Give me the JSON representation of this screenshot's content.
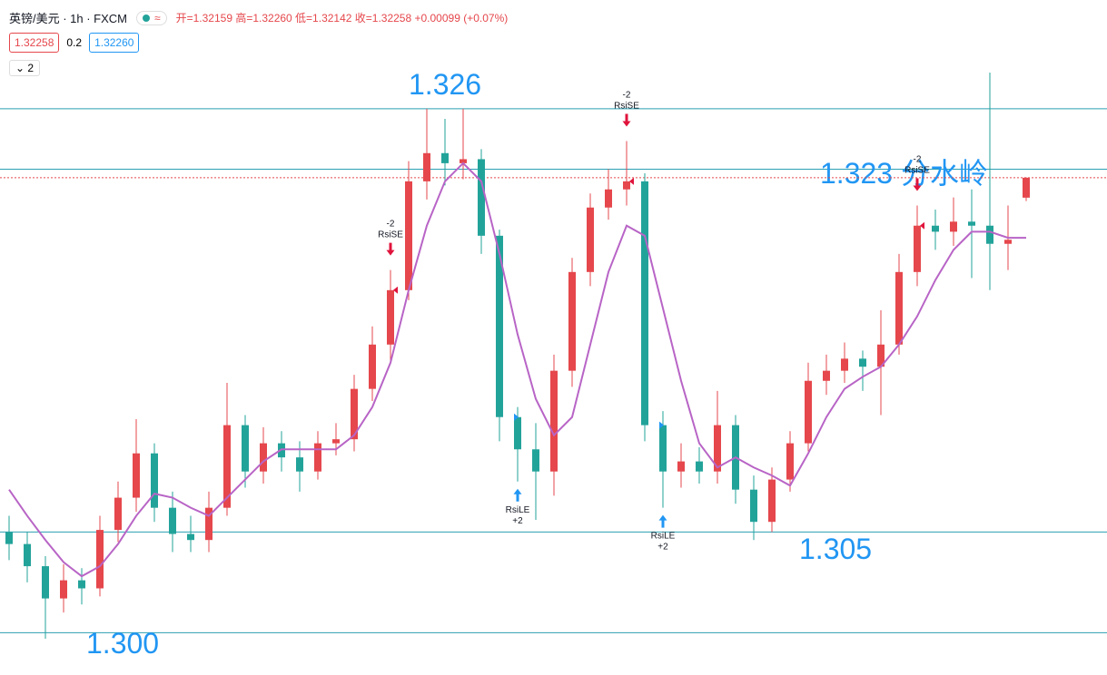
{
  "header": {
    "symbol": "英镑/美元 · 1h · FXCM",
    "ohlc": "开=1.32159 高=1.32260 低=1.32142 收=1.32258 +0.00099 (+0.07%)",
    "bid": "1.32258",
    "spread": "0.2",
    "ask": "1.32260",
    "indicators": "2"
  },
  "chart_data": {
    "type": "candlestick",
    "up_color": "#e5474c",
    "down_color": "#22a39a",
    "ma_color": "#b864c6",
    "level_color": "#2a9fb3",
    "level_label_color": "#2196f3",
    "last_color": "#e5474c",
    "ylim": [
      1.2979,
      1.3314
    ],
    "last": 1.32258,
    "candles": [
      [
        1.305,
        1.3058,
        1.3036,
        1.3044
      ],
      [
        1.3044,
        1.305,
        1.3025,
        1.3033
      ],
      [
        1.3033,
        1.3038,
        1.2997,
        1.3017
      ],
      [
        1.3017,
        1.3034,
        1.301,
        1.3026
      ],
      [
        1.3026,
        1.3032,
        1.3014,
        1.3022
      ],
      [
        1.3022,
        1.3058,
        1.3018,
        1.3051
      ],
      [
        1.3051,
        1.3075,
        1.3045,
        1.3067
      ],
      [
        1.3067,
        1.3106,
        1.306,
        1.3089
      ],
      [
        1.3089,
        1.3094,
        1.3055,
        1.3062
      ],
      [
        1.3062,
        1.307,
        1.304,
        1.3049
      ],
      [
        1.3049,
        1.3058,
        1.304,
        1.3046
      ],
      [
        1.3046,
        1.307,
        1.304,
        1.3062
      ],
      [
        1.3062,
        1.3124,
        1.3058,
        1.3103
      ],
      [
        1.3103,
        1.3108,
        1.3072,
        1.308
      ],
      [
        1.308,
        1.3102,
        1.3074,
        1.3094
      ],
      [
        1.3094,
        1.31,
        1.308,
        1.3087
      ],
      [
        1.3087,
        1.3095,
        1.307,
        1.308
      ],
      [
        1.308,
        1.31,
        1.3076,
        1.3094
      ],
      [
        1.3094,
        1.3104,
        1.3088,
        1.3096
      ],
      [
        1.3096,
        1.3128,
        1.309,
        1.3121
      ],
      [
        1.3121,
        1.3152,
        1.3115,
        1.3143
      ],
      [
        1.3143,
        1.318,
        1.3135,
        1.317
      ],
      [
        1.317,
        1.3234,
        1.3165,
        1.3224
      ],
      [
        1.3224,
        1.326,
        1.3215,
        1.3238
      ],
      [
        1.3238,
        1.3255,
        1.3222,
        1.3233
      ],
      [
        1.3233,
        1.326,
        1.3225,
        1.3235
      ],
      [
        1.3235,
        1.324,
        1.3188,
        1.3197
      ],
      [
        1.3197,
        1.32,
        1.3095,
        1.3107
      ],
      [
        1.3107,
        1.3112,
        1.3075,
        1.3091
      ],
      [
        1.3091,
        1.3104,
        1.3056,
        1.308
      ],
      [
        1.308,
        1.3138,
        1.3068,
        1.313
      ],
      [
        1.313,
        1.3186,
        1.3122,
        1.3179
      ],
      [
        1.3179,
        1.3218,
        1.3172,
        1.3211
      ],
      [
        1.3211,
        1.323,
        1.3205,
        1.322
      ],
      [
        1.322,
        1.3244,
        1.3212,
        1.3224
      ],
      [
        1.3224,
        1.3228,
        1.3095,
        1.3103
      ],
      [
        1.3103,
        1.311,
        1.3062,
        1.308
      ],
      [
        1.308,
        1.3094,
        1.3072,
        1.3085
      ],
      [
        1.3085,
        1.3092,
        1.3074,
        1.308
      ],
      [
        1.308,
        1.312,
        1.3074,
        1.3103
      ],
      [
        1.3103,
        1.3108,
        1.3064,
        1.3071
      ],
      [
        1.3071,
        1.3078,
        1.3046,
        1.3055
      ],
      [
        1.3055,
        1.3082,
        1.305,
        1.3076
      ],
      [
        1.3076,
        1.31,
        1.307,
        1.3094
      ],
      [
        1.3094,
        1.3134,
        1.309,
        1.3125
      ],
      [
        1.3125,
        1.3138,
        1.3118,
        1.313
      ],
      [
        1.313,
        1.3144,
        1.3124,
        1.3136
      ],
      [
        1.3136,
        1.314,
        1.312,
        1.3132
      ],
      [
        1.3132,
        1.316,
        1.3108,
        1.3143
      ],
      [
        1.3143,
        1.3188,
        1.3138,
        1.3179
      ],
      [
        1.3179,
        1.3212,
        1.3172,
        1.3202
      ],
      [
        1.3202,
        1.321,
        1.319,
        1.3199
      ],
      [
        1.3199,
        1.3216,
        1.3192,
        1.3204
      ],
      [
        1.3204,
        1.322,
        1.3176,
        1.3202
      ],
      [
        1.3202,
        1.3278,
        1.317,
        1.3193
      ],
      [
        1.3193,
        1.3212,
        1.318,
        1.3195
      ],
      [
        1.32159,
        1.3226,
        1.32142,
        1.32258
      ]
    ],
    "ma": [
      1.3071,
      1.3058,
      1.3046,
      1.3035,
      1.3028,
      1.3033,
      1.3044,
      1.3058,
      1.3069,
      1.3067,
      1.3062,
      1.3058,
      1.3067,
      1.3076,
      1.3085,
      1.3091,
      1.3091,
      1.3091,
      1.3091,
      1.3098,
      1.3112,
      1.3134,
      1.317,
      1.3202,
      1.3224,
      1.3233,
      1.3224,
      1.3188,
      1.3148,
      1.3116,
      1.3098,
      1.3107,
      1.3143,
      1.3179,
      1.3202,
      1.3197,
      1.3161,
      1.3125,
      1.3094,
      1.3082,
      1.3087,
      1.3082,
      1.3078,
      1.3073,
      1.3089,
      1.3107,
      1.3121,
      1.3127,
      1.3132,
      1.3143,
      1.3157,
      1.3175,
      1.319,
      1.3199,
      1.3199,
      1.3196,
      1.3196
    ],
    "levels": [
      {
        "value": 1.326,
        "label": "1.326"
      },
      {
        "value": 1.323,
        "label": "1.323 分水岭"
      },
      {
        "value": 1.305,
        "label": "1.305"
      },
      {
        "value": 1.3,
        "label": "1.300"
      }
    ],
    "signals": [
      {
        "bar": 21,
        "name": "RsiSE",
        "qty": "-2"
      },
      {
        "bar": 34,
        "name": "RsiSE",
        "qty": "-2"
      },
      {
        "bar": 50,
        "name": "RsiSE",
        "qty": "-2"
      },
      {
        "bar": 28,
        "name": "RsiLE",
        "qty": "+2"
      },
      {
        "bar": 36,
        "name": "RsiLE",
        "qty": "+2"
      }
    ]
  }
}
